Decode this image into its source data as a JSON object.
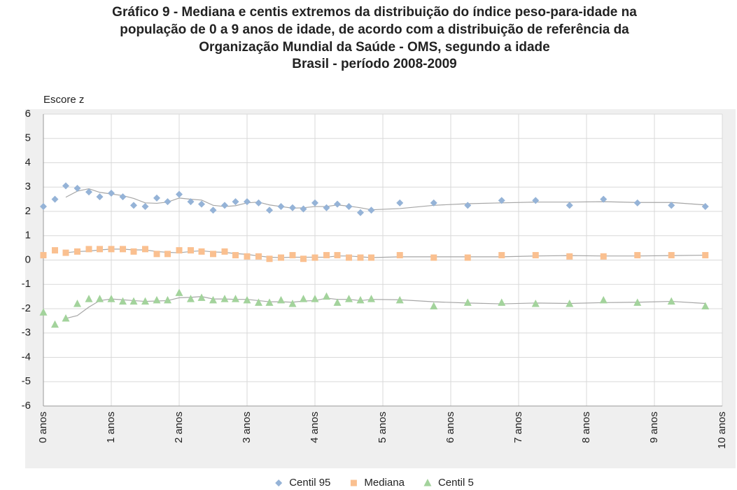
{
  "chart_data": {
    "type": "scatter",
    "title": [
      "Gráfico 9 - Mediana e centis extremos da distribuição do índice peso-para-idade na",
      "população de 0 a 9 anos de idade, de acordo com a distribuição de referência da",
      "Organização Mundial da Saúde - OMS, segundo a idade"
    ],
    "subtitle": "Brasil - período 2008-2009",
    "y_label": "Escore z",
    "x": [
      0,
      0.17,
      0.33,
      0.5,
      0.67,
      0.83,
      1,
      1.17,
      1.33,
      1.5,
      1.67,
      1.83,
      2,
      2.17,
      2.33,
      2.5,
      2.67,
      2.83,
      3,
      3.17,
      3.33,
      3.5,
      3.67,
      3.83,
      4,
      4.17,
      4.33,
      4.5,
      4.67,
      4.83,
      5.25,
      5.75,
      6.25,
      6.75,
      7.25,
      7.75,
      8.25,
      8.75,
      9.25,
      9.75
    ],
    "series": [
      {
        "name": "Centil 95",
        "color": "#95b3d7",
        "marker": "diamond",
        "values": [
          2.2,
          2.5,
          3.05,
          2.95,
          2.8,
          2.6,
          2.75,
          2.6,
          2.25,
          2.2,
          2.55,
          2.4,
          2.7,
          2.4,
          2.3,
          2.05,
          2.25,
          2.4,
          2.4,
          2.35,
          2.05,
          2.2,
          2.15,
          2.1,
          2.35,
          2.15,
          2.3,
          2.2,
          1.95,
          2.05,
          2.35,
          2.35,
          2.25,
          2.45,
          2.45,
          2.25,
          2.5,
          2.35,
          2.25,
          2.2
        ]
      },
      {
        "name": "Mediana",
        "color": "#fac090",
        "marker": "square",
        "values": [
          0.2,
          0.4,
          0.3,
          0.35,
          0.45,
          0.45,
          0.45,
          0.45,
          0.35,
          0.45,
          0.25,
          0.25,
          0.4,
          0.4,
          0.35,
          0.25,
          0.35,
          0.2,
          0.15,
          0.15,
          0.05,
          0.1,
          0.2,
          0.05,
          0.1,
          0.2,
          0.2,
          0.1,
          0.1,
          0.1,
          0.2,
          0.1,
          0.1,
          0.2,
          0.2,
          0.15,
          0.15,
          0.2,
          0.2,
          0.2
        ]
      },
      {
        "name": "Centil 5",
        "color": "#a3d39c",
        "marker": "triangle",
        "values": [
          -2.15,
          -2.65,
          -2.4,
          -1.8,
          -1.6,
          -1.6,
          -1.6,
          -1.7,
          -1.7,
          -1.7,
          -1.65,
          -1.65,
          -1.35,
          -1.6,
          -1.55,
          -1.65,
          -1.6,
          -1.6,
          -1.65,
          -1.75,
          -1.75,
          -1.65,
          -1.8,
          -1.6,
          -1.6,
          -1.5,
          -1.75,
          -1.6,
          -1.65,
          -1.6,
          -1.65,
          -1.9,
          -1.75,
          -1.75,
          -1.8,
          -1.8,
          -1.65,
          -1.75,
          -1.7,
          -1.9
        ]
      }
    ],
    "trendline": true,
    "xlim": [
      0,
      10
    ],
    "xticks": [
      {
        "value": 0,
        "label": "0 anos"
      },
      {
        "value": 1,
        "label": "1 anos"
      },
      {
        "value": 2,
        "label": "2 anos"
      },
      {
        "value": 3,
        "label": "3 anos"
      },
      {
        "value": 4,
        "label": "4 anos"
      },
      {
        "value": 5,
        "label": "5 anos"
      },
      {
        "value": 6,
        "label": "6 anos"
      },
      {
        "value": 7,
        "label": "7 anos"
      },
      {
        "value": 8,
        "label": "8 anos"
      },
      {
        "value": 9,
        "label": "9 anos"
      },
      {
        "value": 10,
        "label": "10 anos"
      }
    ],
    "ylim": [
      -6,
      6
    ],
    "yticks": [
      -6,
      -5,
      -4,
      -3,
      -2,
      -1,
      0,
      1,
      2,
      3,
      4,
      5,
      6
    ],
    "grid": true,
    "legend": "bottom"
  }
}
